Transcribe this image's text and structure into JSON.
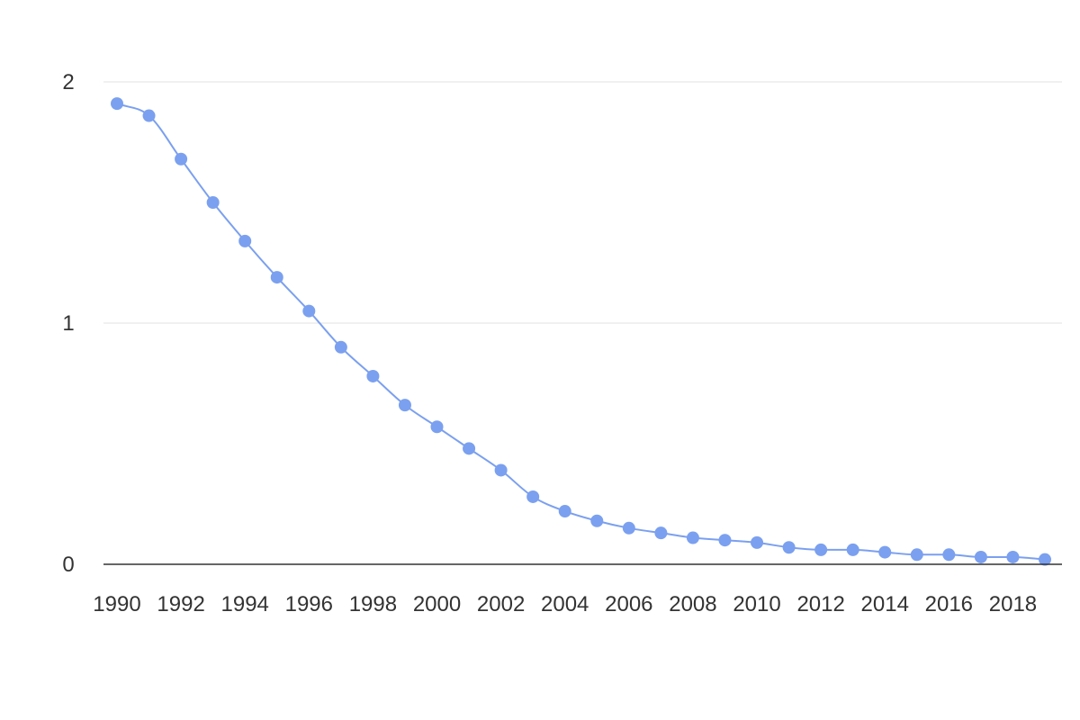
{
  "colors": {
    "series": "#7ba0ef",
    "grid": "#e0e0e0",
    "baseline": "#333333",
    "text": "#333333"
  },
  "chart_data": {
    "type": "line",
    "title": "",
    "xlabel": "",
    "ylabel": "",
    "grid": true,
    "legend": "none",
    "markers": true,
    "smooth": true,
    "ylim": [
      0,
      2
    ],
    "xlim": [
      1990,
      2019
    ],
    "y_ticks": [
      0,
      1,
      2
    ],
    "x_ticks": [
      1990,
      1992,
      1994,
      1996,
      1998,
      2000,
      2002,
      2004,
      2006,
      2008,
      2010,
      2012,
      2014,
      2016,
      2018
    ],
    "series": [
      {
        "x": [
          1990,
          1991,
          1992,
          1993,
          1994,
          1995,
          1996,
          1997,
          1998,
          1999,
          2000,
          2001,
          2002,
          2003,
          2004,
          2005,
          2006,
          2007,
          2008,
          2009,
          2010,
          2011,
          2012,
          2013,
          2014,
          2015,
          2016,
          2017,
          2018,
          2019
        ],
        "values": [
          1.91,
          1.86,
          1.68,
          1.5,
          1.34,
          1.19,
          1.05,
          0.9,
          0.78,
          0.66,
          0.57,
          0.48,
          0.39,
          0.28,
          0.22,
          0.18,
          0.15,
          0.13,
          0.11,
          0.1,
          0.09,
          0.07,
          0.06,
          0.06,
          0.05,
          0.04,
          0.04,
          0.03,
          0.03,
          0.02
        ]
      }
    ]
  }
}
